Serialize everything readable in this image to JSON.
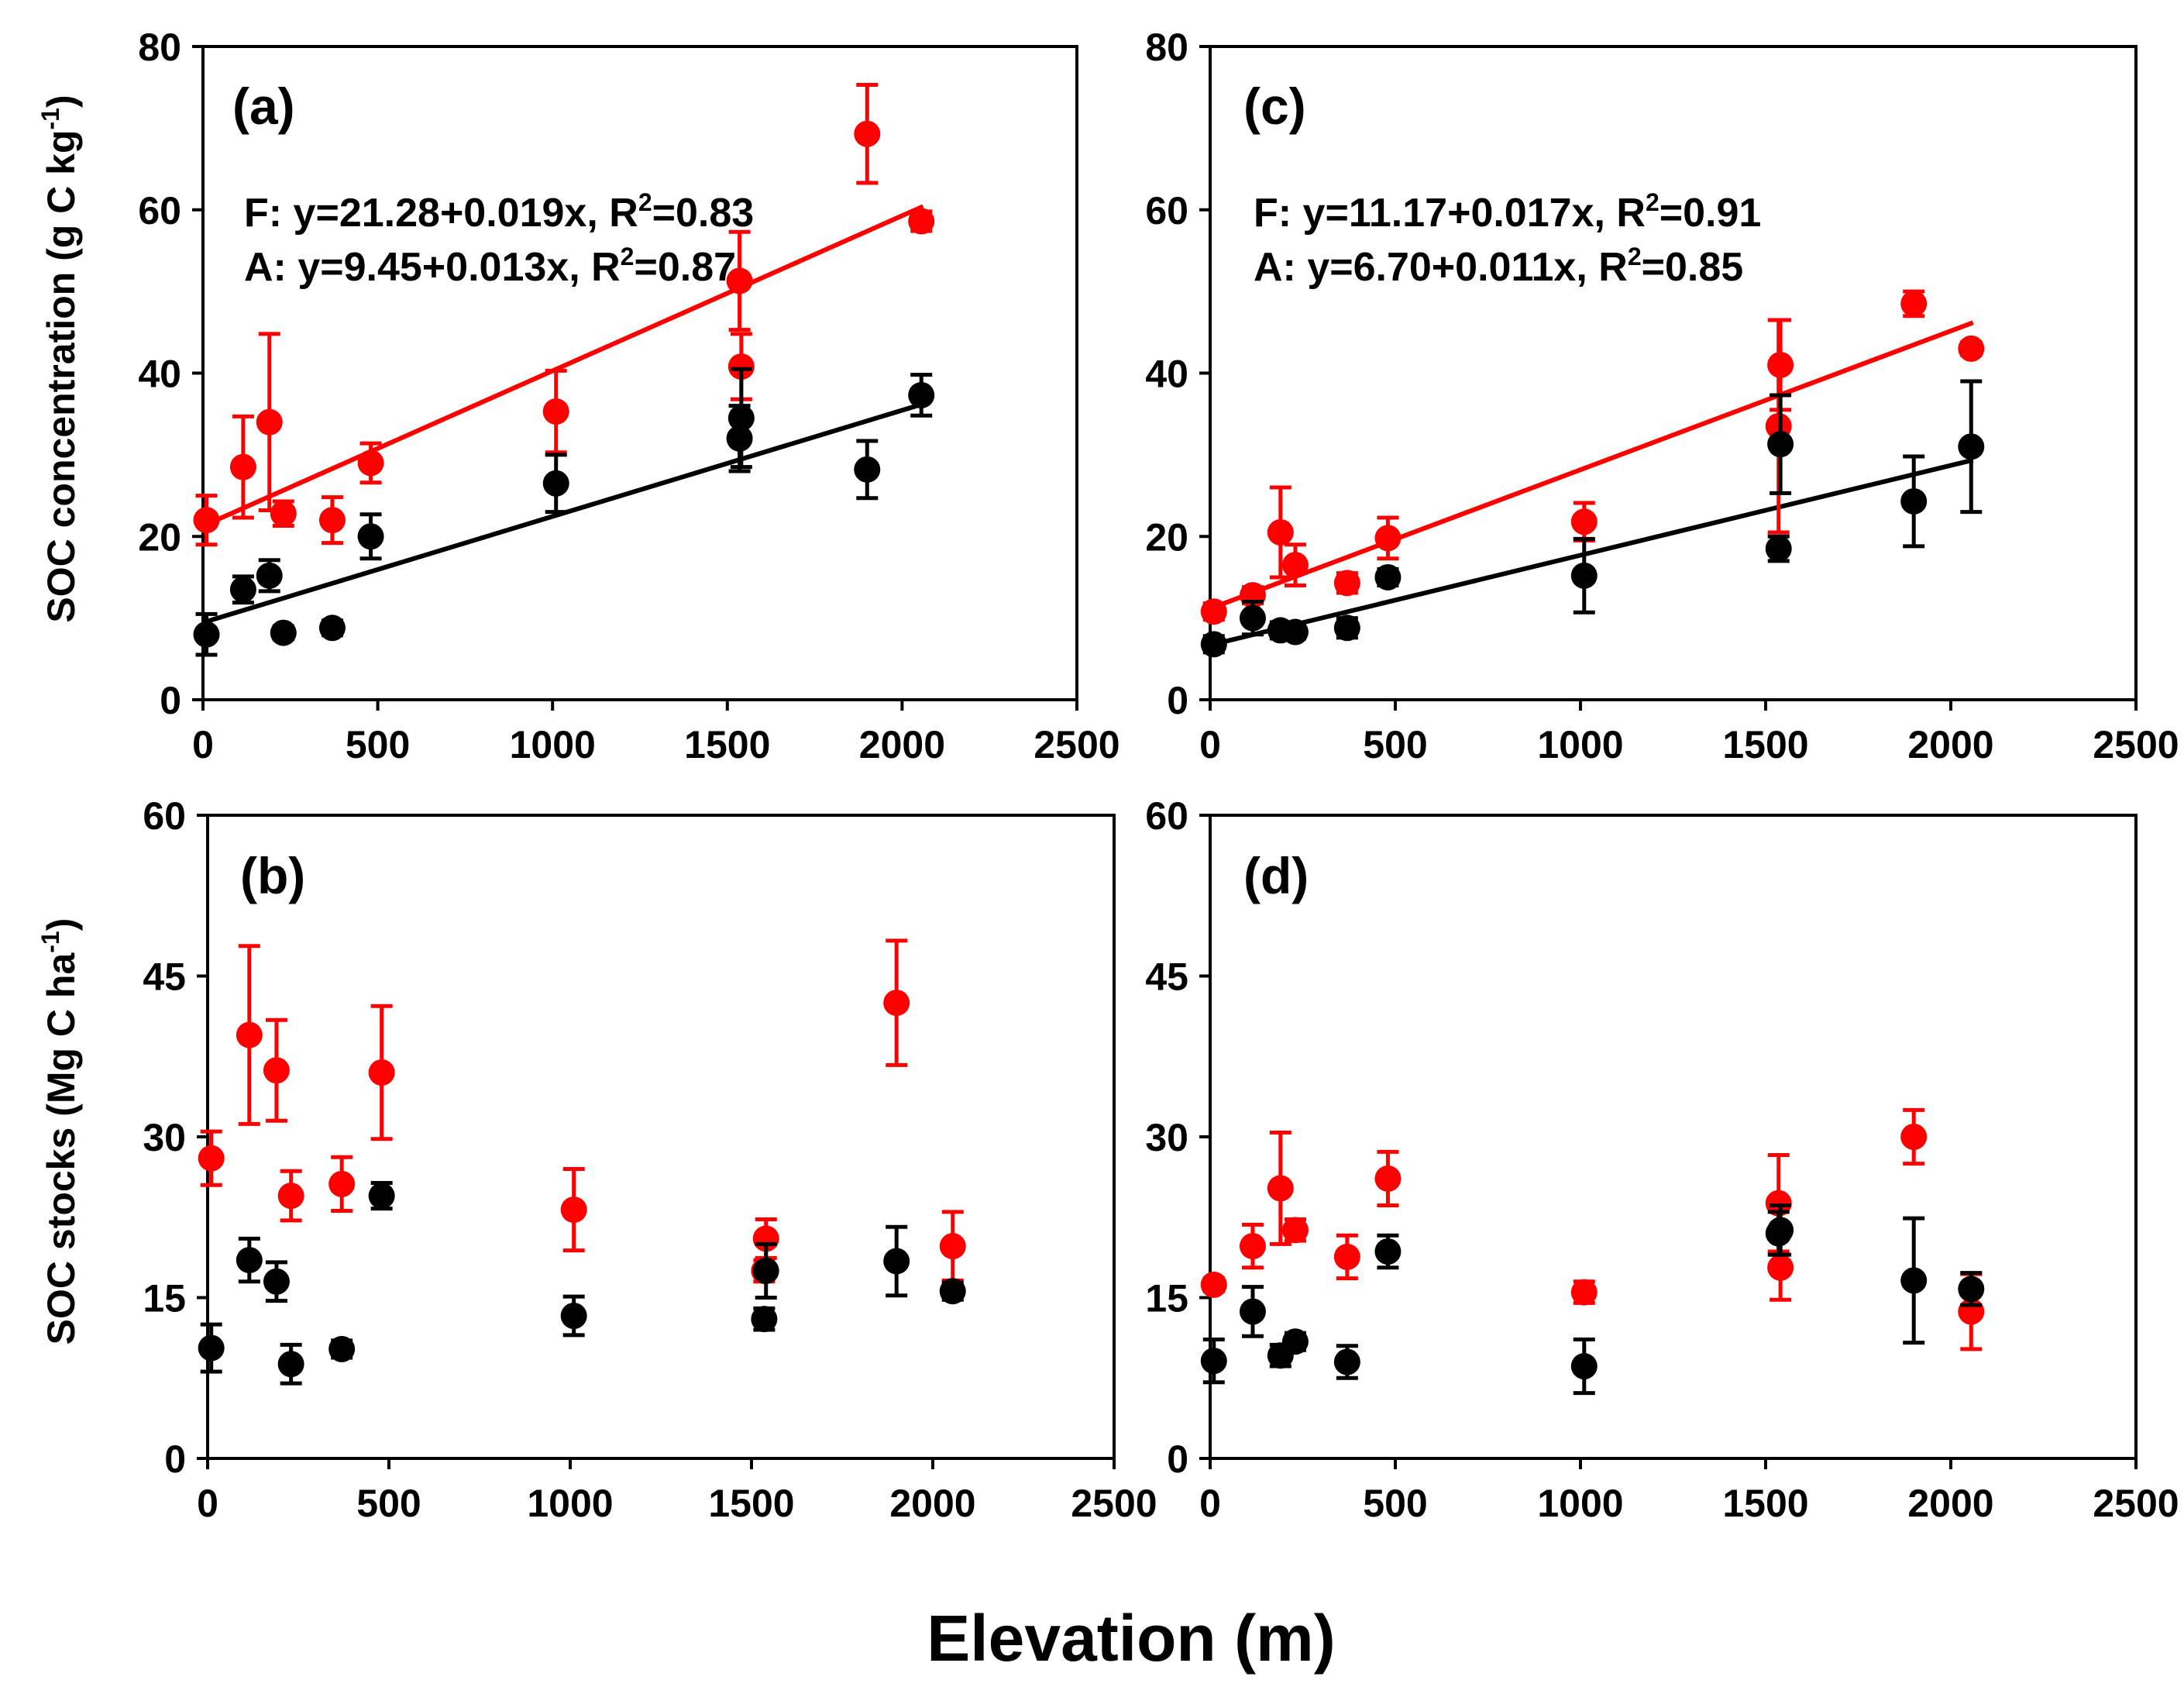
{
  "figure": {
    "x_axis_label": "Elevation (m)",
    "y_axis_label_top": {
      "main": "SOC concentration (g C kg",
      "sup": "-1",
      "close": ")"
    },
    "y_axis_label_bottom": {
      "main": "SOC stocks (Mg C ha",
      "sup": "-1",
      "close": ")"
    },
    "colors": {
      "forest": "#ff0000",
      "agriculture": "#000000"
    }
  },
  "chart_data": [
    {
      "id": "a",
      "label": "(a)",
      "type": "scatter",
      "xlim": [
        0,
        2500
      ],
      "ylim": [
        0,
        80
      ],
      "xticks": [
        "0",
        "500",
        "1000",
        "1500",
        "2000",
        "2500"
      ],
      "yticks": [
        "0",
        "20",
        "40",
        "60",
        "80"
      ],
      "equations": [
        {
          "pre": "F: y=21.28+0.019x, R",
          "sup": "2",
          "post": "=0.83"
        },
        {
          "pre": "A: y=9.45+0.013x, R",
          "sup": "2",
          "post": "=0.87"
        }
      ],
      "series": [
        {
          "name": "F",
          "color": "#ff0000",
          "points": [
            [
              10,
              22,
              3
            ],
            [
              115,
              28.5,
              6.2
            ],
            [
              190,
              34,
              10.8
            ],
            [
              230,
              22.8,
              1.5
            ],
            [
              370,
              22,
              2.8
            ],
            [
              480,
              29,
              2.4
            ],
            [
              1010,
              35.3,
              5
            ],
            [
              1535,
              51.3,
              6
            ],
            [
              1540,
              40.8,
              4
            ],
            [
              1900,
              69.3,
              6
            ],
            [
              2055,
              58.6,
              1.2
            ]
          ],
          "fit": {
            "intercept": 21.28,
            "slope": 0.019,
            "x0": 0,
            "x1": 2060
          }
        },
        {
          "name": "A",
          "color": "#000000",
          "points": [
            [
              10,
              8,
              2.5
            ],
            [
              115,
              13.5,
              1.6
            ],
            [
              190,
              15.2,
              1.9
            ],
            [
              230,
              8.2,
              0.8
            ],
            [
              370,
              8.8,
              0.9
            ],
            [
              480,
              20,
              2.7
            ],
            [
              1010,
              26.5,
              3.5
            ],
            [
              1535,
              32,
              4
            ],
            [
              1540,
              34.5,
              6
            ],
            [
              1900,
              28.2,
              3.5
            ],
            [
              2055,
              37.3,
              2.5
            ]
          ],
          "fit": {
            "intercept": 9.45,
            "slope": 0.013,
            "x0": 0,
            "x1": 2060
          }
        }
      ]
    },
    {
      "id": "b",
      "label": "(b)",
      "type": "scatter",
      "xlim": [
        0,
        2500
      ],
      "ylim": [
        0,
        60
      ],
      "xticks": [
        "0",
        "500",
        "1000",
        "1500",
        "2000",
        "2500"
      ],
      "yticks": [
        "0",
        "15",
        "30",
        "45",
        "60"
      ],
      "equations": [],
      "series": [
        {
          "name": "F",
          "color": "#ff0000",
          "points": [
            [
              10,
              28,
              2.5
            ],
            [
              115,
              39.5,
              8.3
            ],
            [
              190,
              36.2,
              4.7
            ],
            [
              230,
              24.5,
              2.3
            ],
            [
              370,
              25.6,
              2.5
            ],
            [
              480,
              36,
              6.2
            ],
            [
              1010,
              23.2,
              3.8
            ],
            [
              1535,
              17.5,
              1
            ],
            [
              1540,
              20.5,
              1.8
            ],
            [
              1900,
              42.5,
              5.8
            ],
            [
              2055,
              19.8,
              3.2
            ]
          ]
        },
        {
          "name": "A",
          "color": "#000000",
          "points": [
            [
              10,
              10.3,
              2.2
            ],
            [
              115,
              18.5,
              2
            ],
            [
              190,
              16.5,
              1.8
            ],
            [
              230,
              8.8,
              1.8
            ],
            [
              370,
              10.2,
              0.8
            ],
            [
              480,
              24.5,
              1.2
            ],
            [
              1010,
              13.3,
              1.8
            ],
            [
              1535,
              13,
              1
            ],
            [
              1540,
              17.5,
              2.5
            ],
            [
              1900,
              18.4,
              3.2
            ],
            [
              2055,
              15.6,
              0.8
            ]
          ]
        }
      ]
    },
    {
      "id": "c",
      "label": "(c)",
      "type": "scatter",
      "xlim": [
        0,
        2500
      ],
      "ylim": [
        0,
        80
      ],
      "xticks": [
        "0",
        "500",
        "1000",
        "1500",
        "2000",
        "2500"
      ],
      "yticks": [
        "0",
        "20",
        "40",
        "60",
        "80"
      ],
      "equations": [
        {
          "pre": "F: y=11.17+0.017x, R",
          "sup": "2",
          "post": "=0.91"
        },
        {
          "pre": "A: y=6.70+0.011x, R",
          "sup": "2",
          "post": "=0.85"
        }
      ],
      "series": [
        {
          "name": "F",
          "color": "#ff0000",
          "points": [
            [
              10,
              10.8,
              1
            ],
            [
              115,
              12.8,
              1
            ],
            [
              190,
              20.5,
              5.5
            ],
            [
              230,
              16.5,
              2.5
            ],
            [
              370,
              14.3,
              1.2
            ],
            [
              480,
              19.8,
              2.5
            ],
            [
              1010,
              21.8,
              2.3
            ],
            [
              1535,
              33.5,
              13
            ],
            [
              1540,
              41,
              5.5
            ],
            [
              1900,
              48.5,
              1.5
            ],
            [
              2055,
              43,
              0.8
            ]
          ],
          "fit": {
            "intercept": 11.17,
            "slope": 0.017,
            "x0": 0,
            "x1": 2060
          }
        },
        {
          "name": "A",
          "color": "#000000",
          "points": [
            [
              10,
              6.8,
              1
            ],
            [
              115,
              10,
              2
            ],
            [
              190,
              8.5,
              1
            ],
            [
              230,
              8.3,
              0.8
            ],
            [
              370,
              8.8,
              1.2
            ],
            [
              480,
              15,
              1
            ],
            [
              1010,
              15.2,
              4.5
            ],
            [
              1535,
              18.5,
              1.5
            ],
            [
              1540,
              31.3,
              6
            ],
            [
              1900,
              24.3,
              5.5
            ],
            [
              2055,
              31,
              8
            ]
          ],
          "fit": {
            "intercept": 6.7,
            "slope": 0.011,
            "x0": 0,
            "x1": 2060
          }
        }
      ]
    },
    {
      "id": "d",
      "label": "(d)",
      "type": "scatter",
      "xlim": [
        0,
        2500
      ],
      "ylim": [
        0,
        60
      ],
      "xticks": [
        "0",
        "500",
        "1000",
        "1500",
        "2000",
        "2500"
      ],
      "yticks": [
        "0",
        "15",
        "30",
        "45",
        "60"
      ],
      "equations": [],
      "series": [
        {
          "name": "F",
          "color": "#ff0000",
          "points": [
            [
              10,
              16.2,
              0.6
            ],
            [
              115,
              19.8,
              2
            ],
            [
              190,
              25.2,
              5.2
            ],
            [
              230,
              21.3,
              1
            ],
            [
              370,
              18.8,
              2
            ],
            [
              480,
              26.1,
              2.5
            ],
            [
              1010,
              15.5,
              1
            ],
            [
              1535,
              23.8,
              4.5
            ],
            [
              1540,
              17.8,
              3
            ],
            [
              1900,
              30,
              2.5
            ],
            [
              2055,
              13.7,
              3.5
            ]
          ]
        },
        {
          "name": "A",
          "color": "#000000",
          "points": [
            [
              10,
              9.1,
              2
            ],
            [
              115,
              13.7,
              2.3
            ],
            [
              190,
              9.6,
              1
            ],
            [
              230,
              10.9,
              0.8
            ],
            [
              370,
              9,
              1.5
            ],
            [
              480,
              19.3,
              1.5
            ],
            [
              1010,
              8.6,
              2.5
            ],
            [
              1535,
              21,
              2
            ],
            [
              1540,
              21.3,
              2.3
            ],
            [
              1900,
              16.6,
              5.8
            ],
            [
              2055,
              15.8,
              1.5
            ]
          ]
        }
      ]
    }
  ]
}
